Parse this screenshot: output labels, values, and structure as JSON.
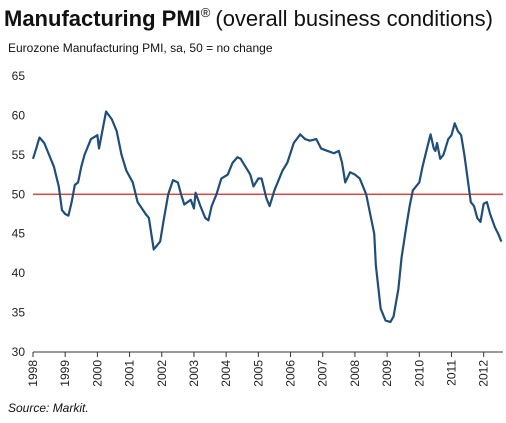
{
  "chart_data": {
    "type": "line",
    "title": "Manufacturing PMI",
    "title_superscript": "®",
    "title_suffix": "(overall business conditions)",
    "subtitle": "Eurozone Manufacturing PMI, sa, 50 = no change",
    "source": "Source: Markit.",
    "ylim": [
      30,
      65
    ],
    "yticks": [
      30,
      35,
      40,
      45,
      50,
      55,
      60,
      65
    ],
    "xlim": [
      1998,
      2012.6
    ],
    "xticks": [
      1998,
      1999,
      2000,
      2001,
      2002,
      2003,
      2004,
      2005,
      2006,
      2007,
      2008,
      2009,
      2010,
      2011,
      2012
    ],
    "reference_line": {
      "value": 50,
      "color": "#e0221a"
    },
    "grid": false,
    "series": [
      {
        "name": "Eurozone Manufacturing PMI",
        "color": "#1f4e79",
        "x": [
          1998.0,
          1998.1,
          1998.2,
          1998.35,
          1998.5,
          1998.65,
          1998.8,
          1998.9,
          1999.0,
          1999.1,
          1999.2,
          1999.3,
          1999.4,
          1999.5,
          1999.6,
          1999.8,
          2000.0,
          2000.05,
          2000.27,
          2000.45,
          2000.6,
          2000.75,
          2000.9,
          2001.1,
          2001.25,
          2001.5,
          2001.6,
          2001.75,
          2001.95,
          2002.05,
          2002.2,
          2002.35,
          2002.5,
          2002.6,
          2002.7,
          2002.9,
          2003.0,
          2003.05,
          2003.2,
          2003.35,
          2003.45,
          2003.55,
          2003.7,
          2003.85,
          2004.05,
          2004.2,
          2004.35,
          2004.45,
          2004.6,
          2004.75,
          2004.85,
          2005.0,
          2005.1,
          2005.25,
          2005.35,
          2005.5,
          2005.6,
          2005.75,
          2005.9,
          2006.1,
          2006.3,
          2006.45,
          2006.6,
          2006.8,
          2006.95,
          2007.15,
          2007.35,
          2007.5,
          2007.6,
          2007.7,
          2007.85,
          2008.0,
          2008.15,
          2008.35,
          2008.45,
          2008.6,
          2008.65,
          2008.8,
          2008.95,
          2009.1,
          2009.2,
          2009.35,
          2009.45,
          2009.6,
          2009.7,
          2009.8,
          2010.0,
          2010.1,
          2010.25,
          2010.35,
          2010.45,
          2010.5,
          2010.55,
          2010.65,
          2010.75,
          2010.9,
          2011.0,
          2011.1,
          2011.2,
          2011.3,
          2011.4,
          2011.5,
          2011.6,
          2011.7,
          2011.8,
          2011.9,
          2012.0,
          2012.1,
          2012.2,
          2012.35,
          2012.45,
          2012.55
        ],
        "values": [
          54.5,
          55.8,
          57.2,
          56.5,
          55,
          53.5,
          51,
          48,
          47.5,
          47.3,
          49,
          51.2,
          51.5,
          53.5,
          55,
          57,
          57.5,
          55.8,
          60.5,
          59.5,
          58,
          55,
          53,
          51.5,
          49,
          47.5,
          47,
          43,
          44,
          46.5,
          50,
          51.8,
          51.5,
          50,
          48.7,
          49.3,
          48.2,
          50.2,
          48.5,
          47,
          46.7,
          48.5,
          50,
          52,
          52.5,
          54,
          54.7,
          54.5,
          53.5,
          52.5,
          51,
          52,
          52,
          49.5,
          48.5,
          50.5,
          51.5,
          53,
          54,
          56.5,
          57.6,
          57,
          56.8,
          57,
          55.8,
          55.5,
          55.2,
          55.5,
          54,
          51.5,
          52.8,
          52.5,
          52,
          50,
          48,
          45,
          41,
          35.5,
          34,
          33.8,
          34.5,
          38,
          42,
          46,
          48.5,
          50.5,
          51.5,
          53.5,
          56,
          57.6,
          55.8,
          55.5,
          56.5,
          54.5,
          55,
          57,
          57.5,
          59,
          58,
          57.5,
          55,
          52,
          49,
          48.5,
          47,
          46.5,
          48.8,
          49,
          47.5,
          45.8,
          45,
          44
        ]
      }
    ]
  }
}
